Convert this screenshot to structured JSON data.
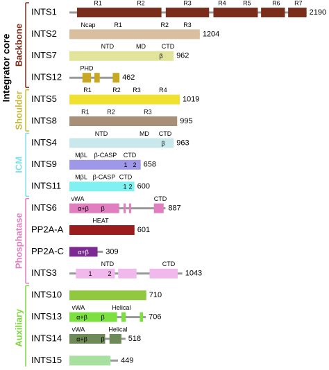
{
  "title": "Integrator core",
  "groups": [
    {
      "label": "Backbone",
      "proteins": [
        {
          "name": "INTS1",
          "length": 2190,
          "above": [
            "R1",
            "R2",
            "R3",
            "R4",
            "R5",
            "R6",
            "R7"
          ],
          "inside": []
        },
        {
          "name": "INTS2",
          "length": 1204,
          "above": [
            "Ncap",
            "R1",
            "R2",
            "R3"
          ],
          "inside": []
        },
        {
          "name": "INTS7",
          "length": 962,
          "above": [
            "NTD",
            "MD",
            "CTD"
          ],
          "inside": [
            "β"
          ]
        },
        {
          "name": "INTS12",
          "length": 462,
          "above": [
            "PHD"
          ],
          "inside": []
        }
      ]
    },
    {
      "label": "Shoulder",
      "proteins": [
        {
          "name": "INTS5",
          "length": 1019,
          "above": [
            "R1",
            "R2",
            "R3",
            "R4"
          ],
          "inside": []
        },
        {
          "name": "INTS8",
          "length": 995,
          "above": [
            "R1",
            "R2",
            "R3"
          ],
          "inside": []
        }
      ]
    },
    {
      "label": "ICM",
      "proteins": [
        {
          "name": "INTS4",
          "length": 963,
          "above": [
            "NTD",
            "MD",
            "CTD"
          ],
          "inside": [
            "β"
          ]
        },
        {
          "name": "INTS9",
          "length": 658,
          "above": [
            "MβL",
            "β-CASP",
            "CTD"
          ],
          "inside": [
            "1",
            "2"
          ]
        },
        {
          "name": "INTS11",
          "length": 600,
          "above": [
            "MβL",
            "β-CASP",
            "CTD"
          ],
          "inside": [
            "1",
            "2"
          ]
        }
      ]
    },
    {
      "label": "Phosphatase",
      "proteins": [
        {
          "name": "INTS6",
          "length": 887,
          "above": [
            "vWA",
            "CTD"
          ],
          "inside": [
            "α+β",
            "β"
          ]
        },
        {
          "name": "PP2A-A",
          "length": 601,
          "above": [
            "HEAT"
          ],
          "inside": []
        },
        {
          "name": "PP2A-C",
          "length": 309,
          "above": [],
          "inside": [
            "α+β"
          ]
        },
        {
          "name": "INTS3",
          "length": 1043,
          "above": [
            "NTD",
            "CTD"
          ],
          "inside": [
            "1",
            "2"
          ]
        }
      ]
    },
    {
      "label": "Auxiliary",
      "proteins": [
        {
          "name": "INTS10",
          "length": 710,
          "above": [],
          "inside": []
        },
        {
          "name": "INTS13",
          "length": 706,
          "above": [
            "vWA",
            "Helical"
          ],
          "inside": [
            "α+β",
            "β"
          ]
        },
        {
          "name": "INTS14",
          "length": 518,
          "above": [
            "vWA",
            "Helical"
          ],
          "inside": [
            "α+β",
            "β"
          ]
        },
        {
          "name": "INTS15",
          "length": 449,
          "above": [],
          "inside": []
        }
      ]
    }
  ]
}
